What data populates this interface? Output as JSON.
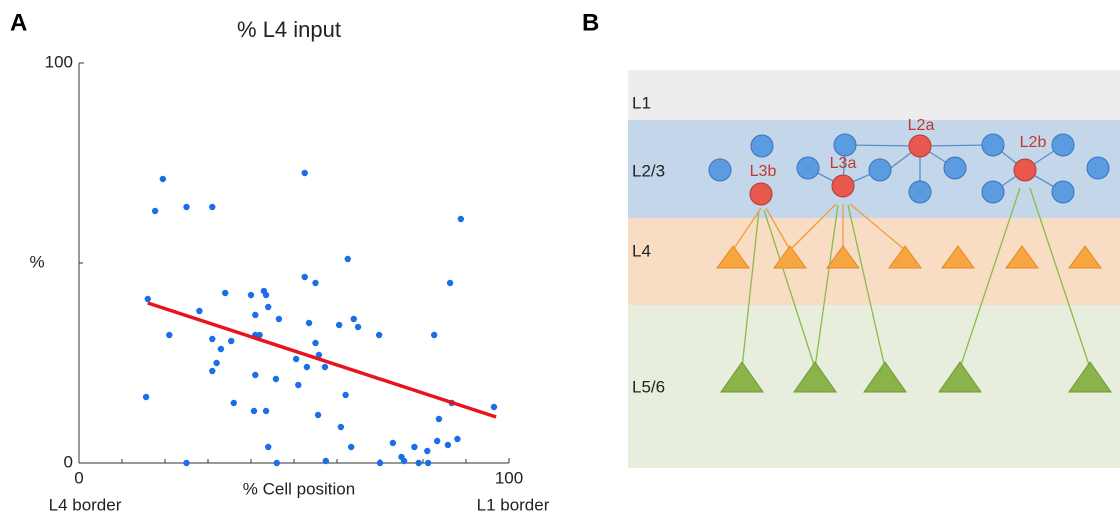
{
  "panels": [
    "A",
    "B"
  ],
  "chart_data": {
    "type": "scatter",
    "title": "% L4 input",
    "xlabel": "% Cell position",
    "ylabel": "%",
    "annotations": [
      "L4 border",
      "L1 border"
    ],
    "x": [
      16,
      15.6,
      19.5,
      17.7,
      21,
      25,
      31,
      25,
      28,
      31,
      33,
      31,
      32,
      34,
      35.4,
      36,
      40,
      41,
      43,
      43.5,
      41,
      42,
      41,
      40.7,
      43.5,
      44,
      46,
      45.8,
      44,
      46.5,
      50.5,
      51,
      52.5,
      52.5,
      55,
      53.5,
      55,
      55.8,
      57.2,
      53,
      55.6,
      57.4,
      60.5,
      62.5,
      63.9,
      62,
      60.9,
      64.9,
      63.3,
      69.8,
      70,
      73,
      75,
      75.6,
      78,
      79,
      81,
      81.2,
      82.6,
      83.3,
      83.7,
      86.3,
      86.7,
      88,
      88.8,
      96.5,
      85.8
    ],
    "values": [
      41,
      16.5,
      71,
      63,
      32,
      64,
      64,
      0,
      38,
      31,
      28.5,
      23,
      25,
      42.5,
      30.5,
      15,
      42,
      37,
      43,
      42,
      32,
      32,
      22,
      13,
      13,
      4,
      0,
      21,
      39,
      36,
      26,
      19.5,
      72.5,
      46.5,
      45,
      35,
      30,
      27,
      24,
      24,
      12,
      0.5,
      34.5,
      51,
      36,
      17,
      9,
      34,
      4,
      32,
      0,
      5,
      1.5,
      0.5,
      4,
      0,
      3,
      0,
      32,
      5.5,
      11,
      45,
      15,
      6,
      61,
      14,
      4.5
    ],
    "color": "#1a6ee8",
    "trendline": {
      "x": [
        16,
        97
      ],
      "values": [
        40,
        11.5
      ],
      "color": "#e8141b"
    },
    "xlim": [
      0,
      100
    ],
    "ylim": [
      0,
      100
    ],
    "xticks": [
      0,
      100
    ],
    "yticks": [
      0,
      100
    ],
    "xminor_ticks": [
      10,
      20,
      30,
      40,
      50,
      60,
      70,
      80,
      90
    ],
    "yminor_ticks": [
      50
    ]
  },
  "diagram": {
    "layers": [
      {
        "label": "L1"
      },
      {
        "label": "L2/3"
      },
      {
        "label": "L4"
      },
      {
        "label": "L5/6"
      }
    ],
    "nodes": [
      {
        "label": "L3b"
      },
      {
        "label": "L3a"
      },
      {
        "label": "L2a"
      },
      {
        "label": "L2b"
      }
    ]
  }
}
